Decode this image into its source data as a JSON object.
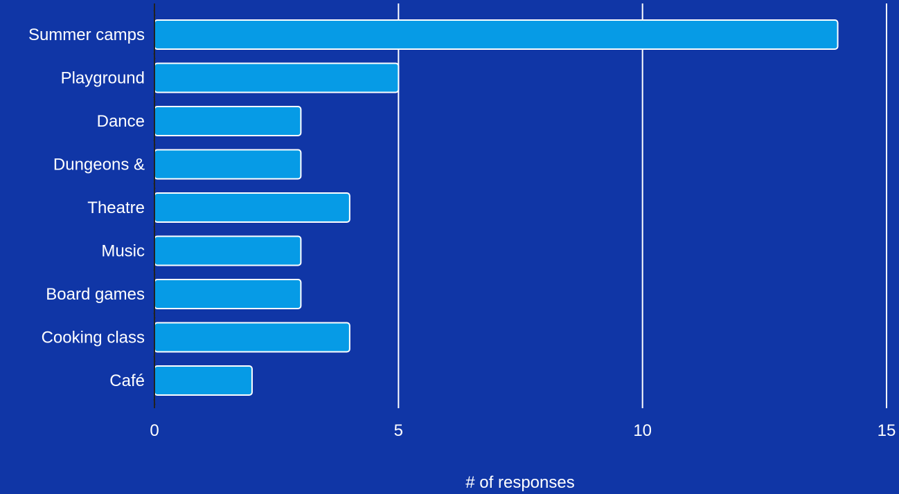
{
  "colors": {
    "background": "#1036a6",
    "bar_fill": "#069be6",
    "bar_stroke": "#ffffff",
    "grid": "#ffffff",
    "text": "#ffffff",
    "axis_line": "#222222"
  },
  "chart_data": {
    "type": "bar",
    "orientation": "horizontal",
    "categories": [
      "Summer camps",
      "Playground",
      "Dance",
      "Dungeons &",
      "Theatre",
      "Music",
      "Board games",
      "Cooking class",
      "Café"
    ],
    "values": [
      14,
      5,
      3,
      3,
      4,
      3,
      3,
      4,
      2
    ],
    "xlabel": "# of responses",
    "ylabel": "",
    "title": "",
    "xlim": [
      0,
      15
    ],
    "xticks": [
      0,
      5,
      10,
      15
    ],
    "grid": true,
    "legend": "none"
  }
}
